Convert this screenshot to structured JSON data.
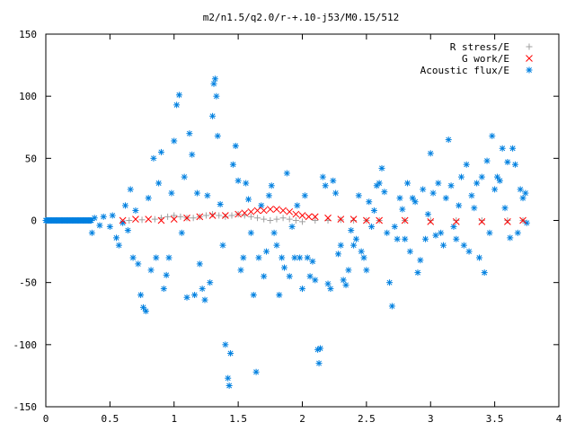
{
  "chart_data": {
    "type": "scatter",
    "title": "m2/n1.5/q2.0/r-+.10-j53/M0.15/512",
    "xlabel": "",
    "ylabel": "",
    "xlim": [
      0,
      4
    ],
    "ylim": [
      -150,
      150
    ],
    "xticks": [
      "0",
      "0.5",
      "1",
      "1.5",
      "2",
      "2.5",
      "3",
      "3.5",
      "4"
    ],
    "yticks": [
      "150",
      "100",
      "50",
      "0",
      "-50",
      "-100",
      "-150"
    ],
    "grid": false,
    "legend_position": "top-right",
    "series": [
      {
        "name": "R stress/E",
        "marker": "plus",
        "color": "#a0a0a0",
        "points": [
          [
            0.65,
            0
          ],
          [
            0.75,
            0.5
          ],
          [
            0.85,
            1
          ],
          [
            0.9,
            2
          ],
          [
            0.95,
            3
          ],
          [
            1.0,
            4
          ],
          [
            1.05,
            3
          ],
          [
            1.1,
            2
          ],
          [
            1.15,
            2
          ],
          [
            1.2,
            3
          ],
          [
            1.25,
            4
          ],
          [
            1.3,
            5
          ],
          [
            1.35,
            4
          ],
          [
            1.4,
            3
          ],
          [
            1.45,
            4
          ],
          [
            1.5,
            5
          ],
          [
            1.55,
            4
          ],
          [
            1.6,
            3
          ],
          [
            1.65,
            2
          ],
          [
            1.7,
            1
          ],
          [
            1.75,
            0
          ],
          [
            1.8,
            1
          ],
          [
            1.85,
            2
          ],
          [
            1.9,
            1
          ],
          [
            1.95,
            0
          ],
          [
            2.0,
            -1
          ],
          [
            2.1,
            0
          ],
          [
            2.2,
            0
          ],
          [
            2.3,
            0.5
          ],
          [
            2.4,
            0
          ],
          [
            2.5,
            0
          ],
          [
            2.6,
            0
          ],
          [
            2.8,
            0
          ],
          [
            3.0,
            0
          ],
          [
            3.2,
            0
          ],
          [
            3.4,
            0
          ],
          [
            3.6,
            0
          ],
          [
            3.72,
            0
          ]
        ]
      },
      {
        "name": "G work/E",
        "marker": "cross",
        "color": "#ff0000",
        "points": [
          [
            0.6,
            0
          ],
          [
            0.7,
            1
          ],
          [
            0.8,
            1
          ],
          [
            0.9,
            0
          ],
          [
            1.0,
            1
          ],
          [
            1.1,
            2
          ],
          [
            1.2,
            3
          ],
          [
            1.3,
            4
          ],
          [
            1.4,
            4
          ],
          [
            1.5,
            5
          ],
          [
            1.55,
            6
          ],
          [
            1.6,
            7
          ],
          [
            1.65,
            8
          ],
          [
            1.7,
            8
          ],
          [
            1.75,
            9
          ],
          [
            1.8,
            9
          ],
          [
            1.85,
            8
          ],
          [
            1.9,
            7
          ],
          [
            1.95,
            5
          ],
          [
            2.0,
            4
          ],
          [
            2.05,
            3
          ],
          [
            2.1,
            3
          ],
          [
            2.2,
            2
          ],
          [
            2.3,
            1
          ],
          [
            2.4,
            1
          ],
          [
            2.5,
            0
          ],
          [
            2.6,
            0
          ],
          [
            2.8,
            0
          ],
          [
            3.0,
            -1
          ],
          [
            3.2,
            -1
          ],
          [
            3.4,
            -1
          ],
          [
            3.6,
            -1
          ],
          [
            3.72,
            0
          ]
        ]
      },
      {
        "name": "Acoustic flux/E",
        "marker": "star",
        "color": "#0080e0",
        "points": [
          [
            0.36,
            -10
          ],
          [
            0.38,
            2
          ],
          [
            0.42,
            -4
          ],
          [
            0.45,
            3
          ],
          [
            0.5,
            -5
          ],
          [
            0.52,
            4
          ],
          [
            0.55,
            -14
          ],
          [
            0.57,
            -20
          ],
          [
            0.6,
            -2
          ],
          [
            0.62,
            12
          ],
          [
            0.64,
            -8
          ],
          [
            0.66,
            25
          ],
          [
            0.68,
            -30
          ],
          [
            0.7,
            8
          ],
          [
            0.72,
            -35
          ],
          [
            0.74,
            -60
          ],
          [
            0.76,
            -70
          ],
          [
            0.78,
            -73
          ],
          [
            0.8,
            18
          ],
          [
            0.82,
            -40
          ],
          [
            0.84,
            50
          ],
          [
            0.86,
            -30
          ],
          [
            0.88,
            30
          ],
          [
            0.9,
            55
          ],
          [
            0.92,
            -55
          ],
          [
            0.94,
            -44
          ],
          [
            0.96,
            -30
          ],
          [
            0.98,
            22
          ],
          [
            1.0,
            64
          ],
          [
            1.02,
            93
          ],
          [
            1.04,
            101
          ],
          [
            1.06,
            -10
          ],
          [
            1.08,
            35
          ],
          [
            1.1,
            -62
          ],
          [
            1.12,
            70
          ],
          [
            1.14,
            53
          ],
          [
            1.16,
            -60
          ],
          [
            1.18,
            22
          ],
          [
            1.2,
            -35
          ],
          [
            1.22,
            -55
          ],
          [
            1.24,
            -64
          ],
          [
            1.26,
            20
          ],
          [
            1.28,
            -50
          ],
          [
            1.3,
            84
          ],
          [
            1.31,
            110
          ],
          [
            1.32,
            114
          ],
          [
            1.33,
            100
          ],
          [
            1.34,
            68
          ],
          [
            1.36,
            13
          ],
          [
            1.38,
            -20
          ],
          [
            1.4,
            -100
          ],
          [
            1.42,
            -127
          ],
          [
            1.43,
            -133
          ],
          [
            1.44,
            -107
          ],
          [
            1.46,
            45
          ],
          [
            1.48,
            60
          ],
          [
            1.5,
            32
          ],
          [
            1.52,
            -40
          ],
          [
            1.54,
            -30
          ],
          [
            1.56,
            30
          ],
          [
            1.58,
            17
          ],
          [
            1.6,
            -10
          ],
          [
            1.62,
            -60
          ],
          [
            1.64,
            -122
          ],
          [
            1.66,
            -30
          ],
          [
            1.68,
            12
          ],
          [
            1.7,
            -45
          ],
          [
            1.72,
            -25
          ],
          [
            1.74,
            20
          ],
          [
            1.76,
            28
          ],
          [
            1.78,
            -10
          ],
          [
            1.8,
            -20
          ],
          [
            1.82,
            -60
          ],
          [
            1.84,
            -30
          ],
          [
            1.86,
            -38
          ],
          [
            1.88,
            38
          ],
          [
            1.9,
            -45
          ],
          [
            1.92,
            -5
          ],
          [
            1.94,
            -30
          ],
          [
            1.96,
            12
          ],
          [
            1.98,
            -30
          ],
          [
            2.0,
            -55
          ],
          [
            2.02,
            20
          ],
          [
            2.04,
            -30
          ],
          [
            2.06,
            -45
          ],
          [
            2.08,
            -33
          ],
          [
            2.1,
            -48
          ],
          [
            2.12,
            -104
          ],
          [
            2.13,
            -115
          ],
          [
            2.14,
            -103
          ],
          [
            2.16,
            35
          ],
          [
            2.18,
            28
          ],
          [
            2.2,
            -51
          ],
          [
            2.22,
            -55
          ],
          [
            2.24,
            32
          ],
          [
            2.26,
            22
          ],
          [
            2.28,
            -27
          ],
          [
            2.3,
            -20
          ],
          [
            2.32,
            -48
          ],
          [
            2.34,
            -52
          ],
          [
            2.36,
            -40
          ],
          [
            2.38,
            -8
          ],
          [
            2.4,
            -20
          ],
          [
            2.42,
            -15
          ],
          [
            2.44,
            20
          ],
          [
            2.46,
            -25
          ],
          [
            2.48,
            -30
          ],
          [
            2.5,
            -40
          ],
          [
            2.52,
            15
          ],
          [
            2.54,
            -5
          ],
          [
            2.56,
            8
          ],
          [
            2.58,
            28
          ],
          [
            2.6,
            30
          ],
          [
            2.62,
            42
          ],
          [
            2.64,
            23
          ],
          [
            2.66,
            -10
          ],
          [
            2.68,
            -50
          ],
          [
            2.7,
            -69
          ],
          [
            2.72,
            -5
          ],
          [
            2.74,
            -15
          ],
          [
            2.76,
            18
          ],
          [
            2.78,
            9
          ],
          [
            2.8,
            -15
          ],
          [
            2.82,
            30
          ],
          [
            2.84,
            -25
          ],
          [
            2.86,
            18
          ],
          [
            2.88,
            15
          ],
          [
            2.9,
            -42
          ],
          [
            2.92,
            -32
          ],
          [
            2.94,
            25
          ],
          [
            2.96,
            -15
          ],
          [
            2.98,
            5
          ],
          [
            3.0,
            54
          ],
          [
            3.02,
            22
          ],
          [
            3.04,
            -12
          ],
          [
            3.06,
            30
          ],
          [
            3.08,
            -10
          ],
          [
            3.1,
            -20
          ],
          [
            3.12,
            18
          ],
          [
            3.14,
            65
          ],
          [
            3.16,
            28
          ],
          [
            3.18,
            -5
          ],
          [
            3.2,
            -15
          ],
          [
            3.22,
            12
          ],
          [
            3.24,
            35
          ],
          [
            3.26,
            -20
          ],
          [
            3.28,
            45
          ],
          [
            3.3,
            -25
          ],
          [
            3.32,
            20
          ],
          [
            3.34,
            10
          ],
          [
            3.36,
            30
          ],
          [
            3.38,
            -30
          ],
          [
            3.4,
            35
          ],
          [
            3.42,
            -42
          ],
          [
            3.44,
            48
          ],
          [
            3.46,
            -10
          ],
          [
            3.48,
            68
          ],
          [
            3.5,
            25
          ],
          [
            3.52,
            35
          ],
          [
            3.54,
            32
          ],
          [
            3.56,
            58
          ],
          [
            3.58,
            10
          ],
          [
            3.6,
            47
          ],
          [
            3.62,
            -14
          ],
          [
            3.64,
            58
          ],
          [
            3.66,
            45
          ],
          [
            3.68,
            -10
          ],
          [
            3.7,
            25
          ],
          [
            3.72,
            18
          ],
          [
            3.74,
            22
          ],
          [
            3.75,
            -2
          ]
        ]
      }
    ]
  }
}
